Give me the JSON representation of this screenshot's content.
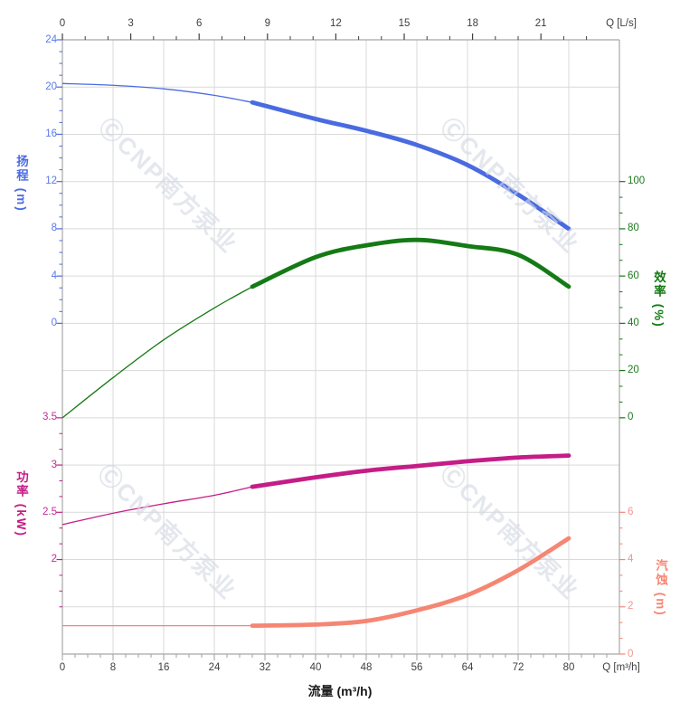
{
  "watermark": {
    "text": "ⒸCNP南方泵业"
  },
  "chart_data": {
    "type": "line",
    "title": "",
    "grid": true,
    "axes": {
      "top": {
        "unit_label": "Q [L/s]",
        "tick_values": [
          0,
          3,
          6,
          9,
          12,
          15,
          18,
          21
        ],
        "range": [
          0,
          24.4
        ],
        "color": "#3f3f3f"
      },
      "bottom": {
        "label": "流量 (m³/h)",
        "unit_label": "Q [m³/h]",
        "tick_values": [
          0,
          8,
          16,
          24,
          32,
          40,
          48,
          56,
          64,
          72,
          80
        ],
        "range": [
          0,
          88
        ],
        "color": "#3f3f3f"
      },
      "head": {
        "label": "扬程 (m)",
        "color": "#4a6be0",
        "label_color": "#5b79e8",
        "tick_values": [
          24,
          20,
          16,
          12,
          8,
          4,
          0
        ],
        "range": [
          0,
          24
        ]
      },
      "eff": {
        "label": "效率 (%)",
        "color": "#157a15",
        "label_color": "#1d7a1d",
        "tick_values": [
          100,
          80,
          60,
          40,
          20,
          0
        ],
        "range": [
          0,
          100
        ]
      },
      "power": {
        "label": "功率 (kW)",
        "color": "#c41d86",
        "label_color": "#c42d94",
        "tick_values": [
          3.5,
          3,
          2.5,
          2
        ],
        "range": [
          1.5,
          3.5
        ]
      },
      "npsh": {
        "label": "汽蚀 (m)",
        "color": "#f58673",
        "label_color": "#f2948b",
        "tick_values": [
          6,
          4,
          2,
          0
        ],
        "range": [
          0,
          6
        ]
      }
    },
    "series": [
      {
        "name": "扬程",
        "id": "head-curve",
        "axis": "head",
        "color": "#4a6be0",
        "q": [
          0,
          8,
          16,
          24,
          30,
          40,
          48,
          56,
          64,
          72,
          80
        ],
        "values": [
          20.3,
          20.15,
          19.85,
          19.3,
          18.7,
          17.3,
          16.3,
          15.1,
          13.4,
          10.9,
          8.0
        ],
        "duty_range": [
          30,
          80
        ]
      },
      {
        "name": "效率",
        "id": "efficiency-curve",
        "axis": "eff",
        "color": "#157a15",
        "q": [
          0,
          8,
          16,
          24,
          30,
          40,
          48,
          56,
          64,
          72,
          80
        ],
        "values": [
          0,
          17,
          33,
          46.5,
          55.5,
          68,
          73,
          75.3,
          72.7,
          69,
          55.5
        ],
        "duty_range": [
          30,
          80
        ]
      },
      {
        "name": "功率",
        "id": "power-curve",
        "axis": "power",
        "color": "#c41d86",
        "q": [
          0,
          8,
          16,
          24,
          30,
          40,
          48,
          56,
          64,
          72,
          80
        ],
        "values": [
          2.37,
          2.49,
          2.59,
          2.68,
          2.77,
          2.87,
          2.94,
          2.99,
          3.04,
          3.08,
          3.1
        ],
        "duty_range": [
          30,
          80
        ]
      },
      {
        "name": "汽蚀",
        "id": "npsh-curve",
        "axis": "npsh",
        "color": "#f58673",
        "q": [
          0,
          8,
          16,
          24,
          30,
          40,
          48,
          56,
          64,
          72,
          80
        ],
        "values": [
          1.2,
          1.2,
          1.2,
          1.2,
          1.2,
          1.25,
          1.4,
          1.85,
          2.5,
          3.55,
          4.9
        ],
        "duty_range": [
          30,
          80
        ]
      }
    ]
  }
}
